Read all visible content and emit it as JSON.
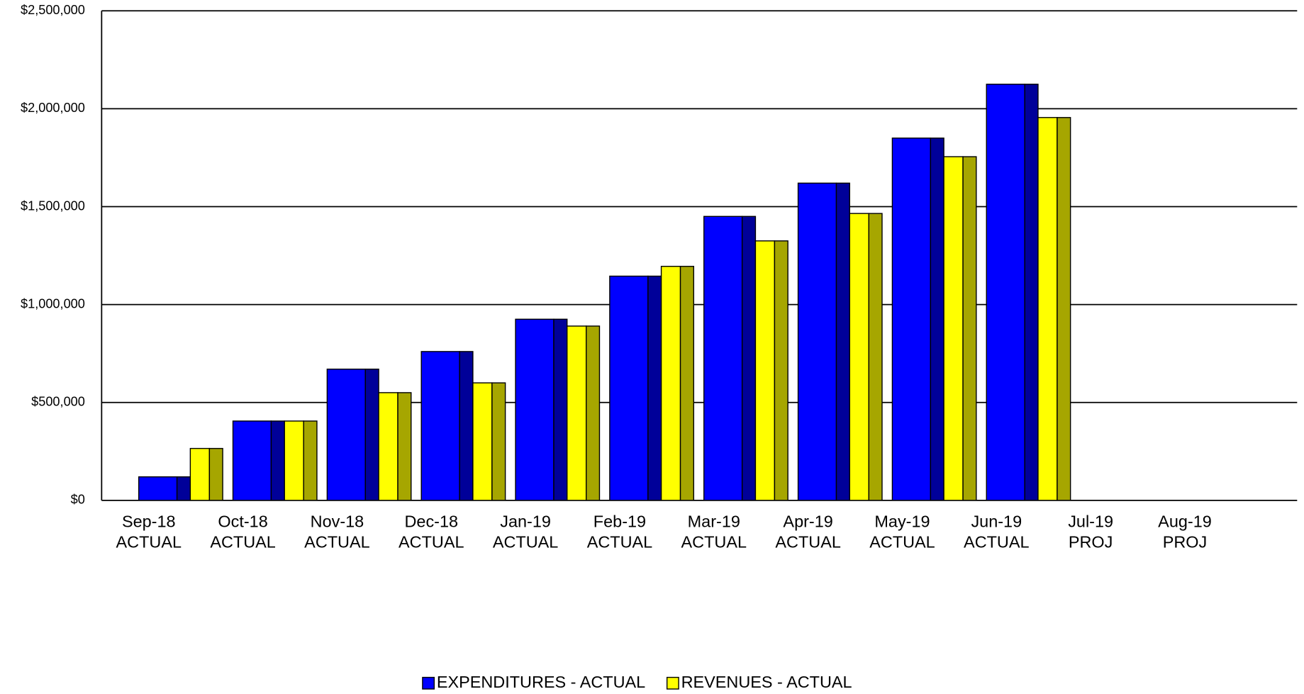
{
  "chart_data": {
    "type": "bar",
    "categories": [
      [
        "Sep-18",
        "ACTUAL"
      ],
      [
        "Oct-18",
        "ACTUAL"
      ],
      [
        "Nov-18",
        "ACTUAL"
      ],
      [
        "Dec-18",
        "ACTUAL"
      ],
      [
        "Jan-19",
        "ACTUAL"
      ],
      [
        "Feb-19",
        "ACTUAL"
      ],
      [
        "Mar-19",
        "ACTUAL"
      ],
      [
        "Apr-19",
        "ACTUAL"
      ],
      [
        "May-19",
        "ACTUAL"
      ],
      [
        "Jun-19",
        "ACTUAL"
      ],
      [
        "Jul-19",
        "PROJ"
      ],
      [
        "Aug-19",
        "PROJ"
      ]
    ],
    "series": [
      {
        "name": "EXPENDITURES - ACTUAL",
        "color": "#0000ff",
        "side_color": "#000099",
        "values": [
          120000,
          405000,
          670000,
          760000,
          925000,
          1145000,
          1450000,
          1620000,
          1850000,
          2125000,
          null,
          null
        ]
      },
      {
        "name": "REVENUES - ACTUAL",
        "color": "#ffff00",
        "side_color": "#a6a600",
        "values": [
          265000,
          405000,
          550000,
          600000,
          890000,
          1195000,
          1325000,
          1465000,
          1755000,
          1955000,
          null,
          null
        ]
      }
    ],
    "ylim": [
      0,
      2500000
    ],
    "yticks": [
      {
        "value": 0,
        "label": "$0"
      },
      {
        "value": 500000,
        "label": "$500,000"
      },
      {
        "value": 1000000,
        "label": "$1,000,000"
      },
      {
        "value": 1500000,
        "label": "$1,500,000"
      },
      {
        "value": 2000000,
        "label": "$2,000,000"
      },
      {
        "value": 2500000,
        "label": "$2,500,000"
      }
    ],
    "grid": true,
    "legend": "bottom"
  }
}
